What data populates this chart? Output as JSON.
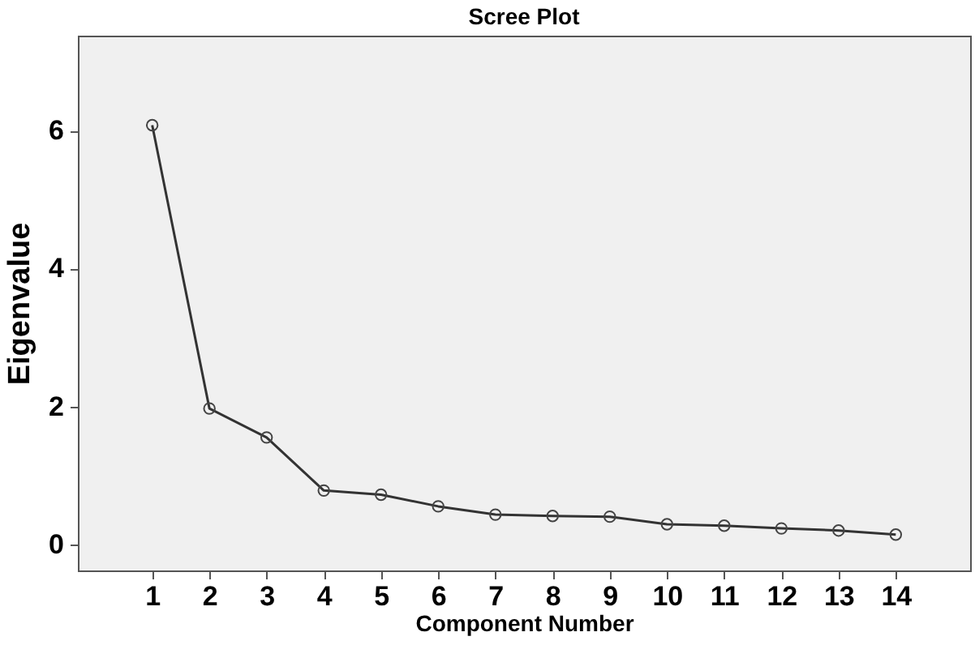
{
  "chart_data": {
    "type": "line",
    "title": "Scree Plot",
    "xlabel": "Component Number",
    "ylabel": "Eigenvalue",
    "x": [
      1,
      2,
      3,
      4,
      5,
      6,
      7,
      8,
      9,
      10,
      11,
      12,
      13,
      14
    ],
    "series": [
      {
        "color": "#333333",
        "values": [
          6.08,
          1.97,
          1.55,
          0.78,
          0.72,
          0.55,
          0.43,
          0.41,
          0.4,
          0.29,
          0.27,
          0.23,
          0.2,
          0.14
        ]
      }
    ],
    "xlim": [
      -0.3,
      15.3
    ],
    "xticks": [
      1,
      2,
      3,
      4,
      5,
      6,
      7,
      8,
      9,
      10,
      11,
      12,
      13,
      14
    ],
    "ylim": [
      -0.38,
      7.38
    ],
    "yticks": [
      0,
      2,
      4,
      6
    ],
    "grid": false,
    "legend": false,
    "marker": "circle",
    "line_style": "solid"
  }
}
